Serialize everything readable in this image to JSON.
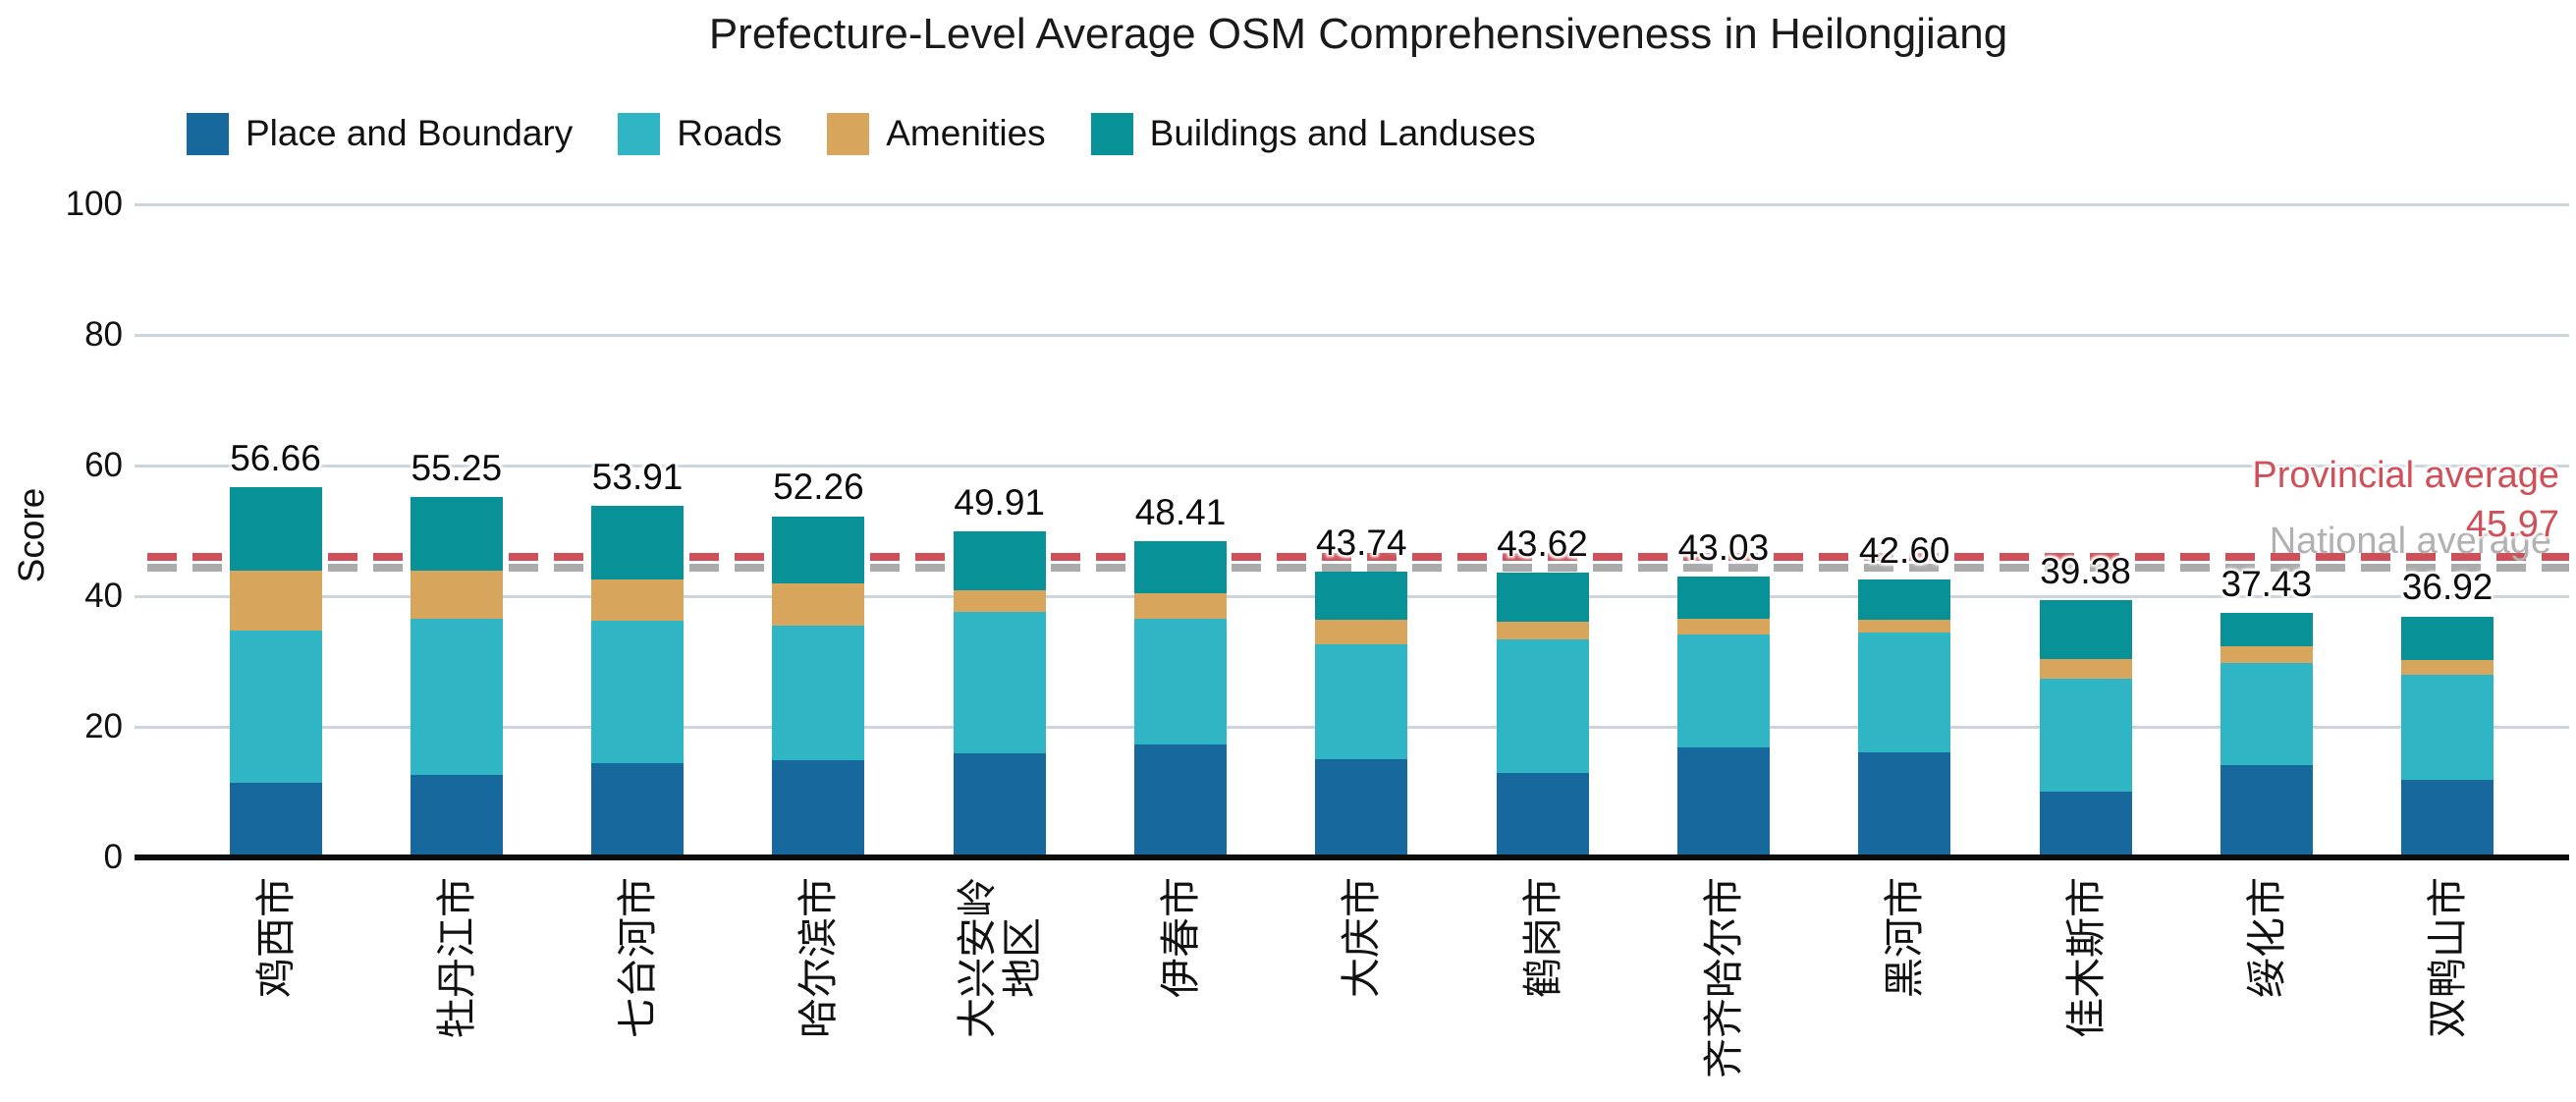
{
  "title": "Prefecture-Level Average OSM Comprehensiveness in Heilongjiang",
  "y_axis": {
    "label": "Score",
    "ticks": [
      0,
      20,
      40,
      60,
      80,
      100
    ]
  },
  "chart_data": {
    "type": "bar",
    "stacked": true,
    "title": "Prefecture-Level Average OSM Comprehensiveness in Heilongjiang",
    "xlabel": "",
    "ylabel": "Score",
    "ylim": [
      0,
      100
    ],
    "grid": true,
    "legend_position": "top-left",
    "categories": [
      "鸡西市",
      "牡丹江市",
      "七台河市",
      "哈尔滨市",
      "大兴安岭地区",
      "伊春市",
      "大庆市",
      "鹤岗市",
      "齐齐哈尔市",
      "黑河市",
      "佳木斯市",
      "绥化市",
      "双鸭山市"
    ],
    "category_display_lines": [
      [
        "鸡西市"
      ],
      [
        "牡丹江市"
      ],
      [
        "七台河市"
      ],
      [
        "哈尔滨市"
      ],
      [
        "大兴安岭",
        "地区"
      ],
      [
        "伊春市"
      ],
      [
        "大庆市"
      ],
      [
        "鹤岗市"
      ],
      [
        "齐齐哈尔市"
      ],
      [
        "黑河市"
      ],
      [
        "佳木斯市"
      ],
      [
        "绥化市"
      ],
      [
        "双鸭山市"
      ]
    ],
    "series": [
      {
        "name": "Place and Boundary",
        "color": "#17689d",
        "values": [
          11.5,
          12.7,
          14.5,
          14.9,
          16.0,
          17.3,
          15.0,
          13.0,
          16.9,
          16.1,
          10.1,
          14.1,
          11.9
        ]
      },
      {
        "name": "Roads",
        "color": "#2fb5c3",
        "values": [
          23.3,
          23.9,
          21.7,
          20.6,
          21.6,
          19.3,
          17.6,
          20.4,
          17.2,
          18.4,
          17.2,
          15.7,
          16.0
        ]
      },
      {
        "name": "Amenities",
        "color": "#d7a65c",
        "values": [
          9.1,
          7.3,
          6.3,
          6.5,
          3.3,
          3.9,
          3.8,
          2.7,
          2.4,
          1.9,
          3.1,
          2.5,
          2.4
        ]
      },
      {
        "name": "Buildings and Landuses",
        "color": "#089298",
        "values": [
          12.76,
          11.35,
          11.41,
          10.26,
          9.01,
          7.91,
          7.34,
          7.52,
          6.53,
          6.2,
          8.98,
          5.13,
          6.62
        ]
      }
    ],
    "totals": [
      "56.66",
      "55.25",
      "53.91",
      "52.26",
      "49.91",
      "48.41",
      "43.74",
      "43.62",
      "43.03",
      "42.60",
      "39.38",
      "37.43",
      "36.92"
    ],
    "reference_lines": [
      {
        "label": "Provincial average",
        "display": "45.97",
        "score": 45.97,
        "color": "#d05059",
        "style": "dashed"
      },
      {
        "label": "National average",
        "display": "",
        "score": 44.4,
        "color": "#ababab",
        "style": "dashed"
      }
    ]
  }
}
